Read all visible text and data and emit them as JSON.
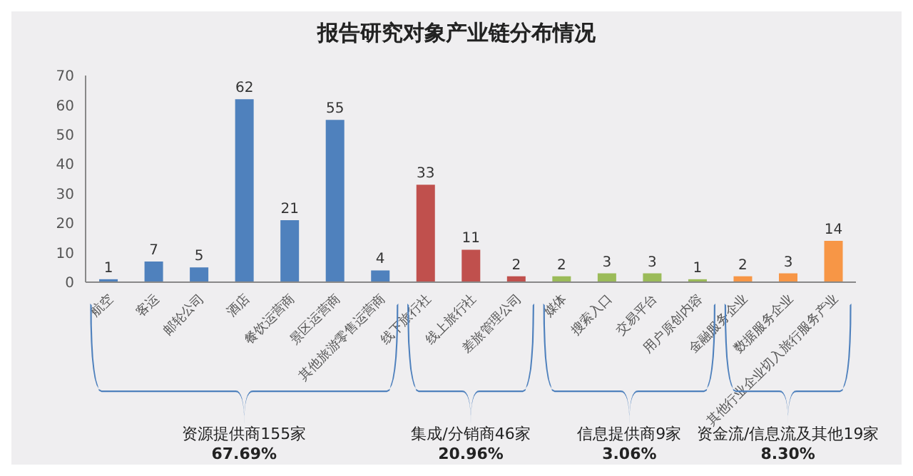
{
  "chart_data": {
    "type": "bar",
    "title": "报告研究对象产业链分布情况",
    "categories": [
      "航空",
      "客运",
      "邮轮公司",
      "酒店",
      "餐饮运营商",
      "景区运营商",
      "其他旅游零售运营商",
      "线下旅行社",
      "线上旅行社",
      "差旅管理公司",
      "媒体",
      "搜索入口",
      "交易平台",
      "用户原创内容",
      "金融服务企业",
      "数据服务企业",
      "其他行业企业切入旅行服务产业"
    ],
    "values": [
      1,
      7,
      5,
      62,
      21,
      55,
      4,
      33,
      11,
      2,
      2,
      3,
      3,
      1,
      2,
      3,
      14
    ],
    "colors": [
      "#4f81bd",
      "#4f81bd",
      "#4f81bd",
      "#4f81bd",
      "#4f81bd",
      "#4f81bd",
      "#4f81bd",
      "#c0504d",
      "#c0504d",
      "#c0504d",
      "#9bbb59",
      "#9bbb59",
      "#9bbb59",
      "#9bbb59",
      "#f79646",
      "#f79646",
      "#f79646"
    ],
    "ylim": [
      0,
      70
    ],
    "yticks": [
      0,
      10,
      20,
      30,
      40,
      50,
      60,
      70
    ],
    "grid": false,
    "data_labels": true,
    "annotations": [
      "资源提供商155家",
      "67.69%",
      "集成/分销商46家",
      "20.96%",
      "信息提供商9家",
      "3.06%",
      "资金流/信息流及其他19家",
      "8.30%"
    ]
  }
}
